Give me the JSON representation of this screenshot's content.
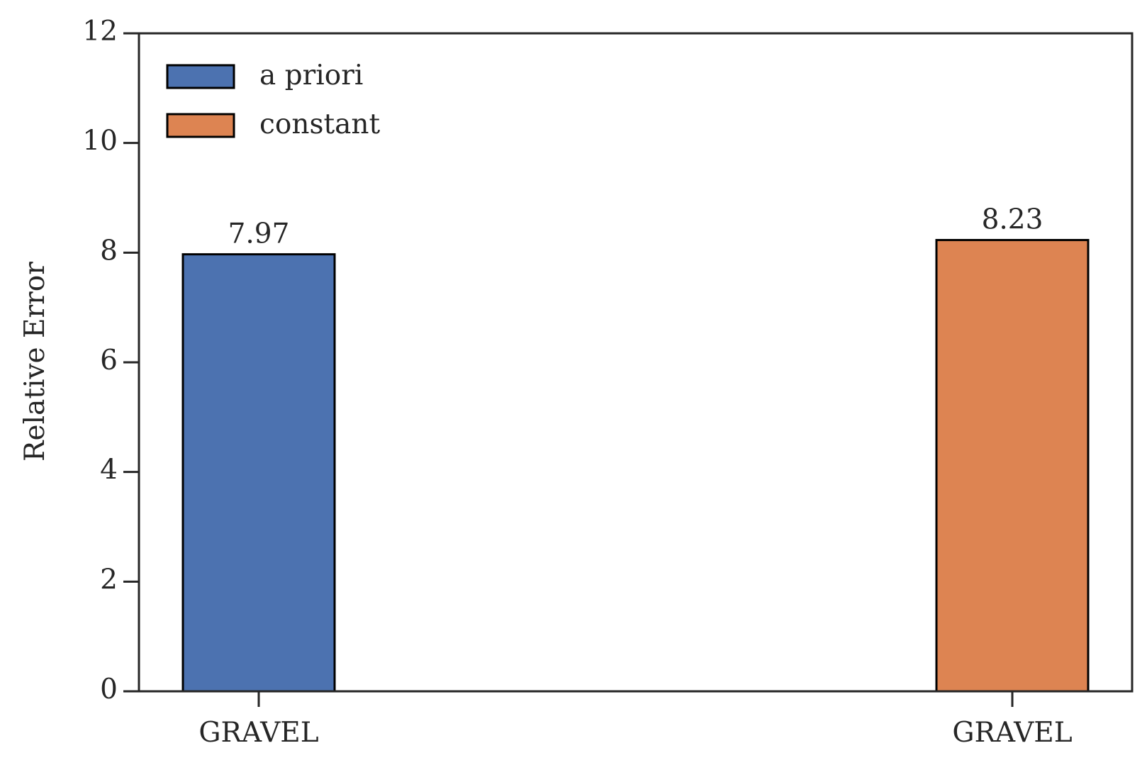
{
  "chart_data": {
    "type": "bar",
    "y_label": "Relative Error",
    "categories": [
      "GRAVEL",
      "GRAVEL"
    ],
    "series": [
      {
        "name": "a priori",
        "color": "#4c72b0",
        "values": [
          7.97,
          null
        ]
      },
      {
        "name": "constant",
        "color": "#dd8452",
        "values": [
          null,
          8.23
        ]
      }
    ],
    "ylim": [
      0,
      12
    ],
    "yticks": [
      0,
      2,
      4,
      6,
      8,
      10,
      12
    ],
    "grid": false,
    "legend": "upper left",
    "value_labels_shown": true
  }
}
